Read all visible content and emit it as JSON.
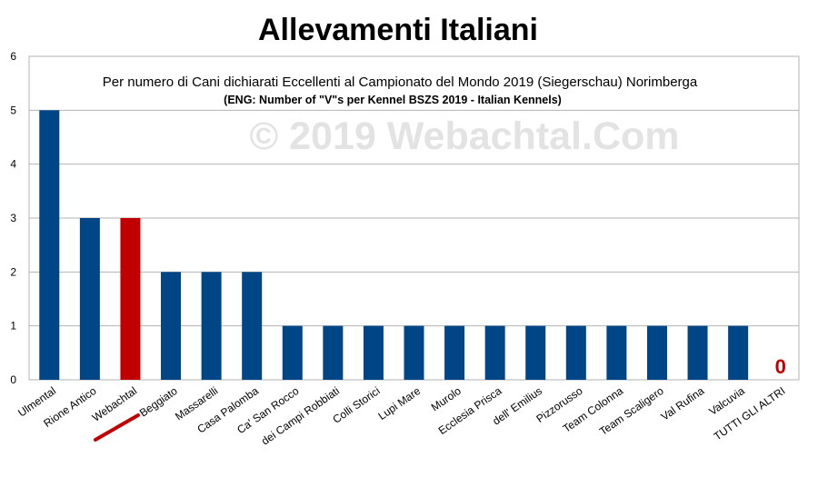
{
  "chart_data": {
    "type": "bar",
    "title": "Allevamenti Italiani",
    "subtitle": "Per numero di Cani dichiarati Eccellenti al Campionato del Mondo 2019 (Siegerschau) Norimberga",
    "subtitle_en": "(ENG: Number of \"V\"s per Kennel BSZS 2019 - Italian Kennels)",
    "watermark": "© 2019 Webachtal.Com",
    "xlabel": "",
    "ylabel": "",
    "ylim": [
      0,
      6
    ],
    "yticks": [
      "0",
      "1",
      "2",
      "3",
      "4",
      "5",
      "6"
    ],
    "categories": [
      "Ulmental",
      "Rione Antico",
      "Webachtal",
      "Beggiato",
      "Massarelli",
      "Casa Palomba",
      "Ca' San Rocco",
      "dei Campi Robbiati",
      "Colli Storici",
      "Lupi Mare",
      "Murolo",
      "Ecclesia Prisca",
      "dell' Emilius",
      "Pizzorusso",
      "Team Colonna",
      "Team Scaligero",
      "Val Rufina",
      "Valcuvia",
      "TUTTI GLI ALTRI"
    ],
    "values": [
      5,
      3,
      3,
      2,
      2,
      2,
      1,
      1,
      1,
      1,
      1,
      1,
      1,
      1,
      1,
      1,
      1,
      1,
      0
    ],
    "zero_label": "0",
    "highlight_category": "Webachtal",
    "bar_color": "#004586",
    "highlight_color": "#c00000",
    "grid": true,
    "legend": "none"
  }
}
